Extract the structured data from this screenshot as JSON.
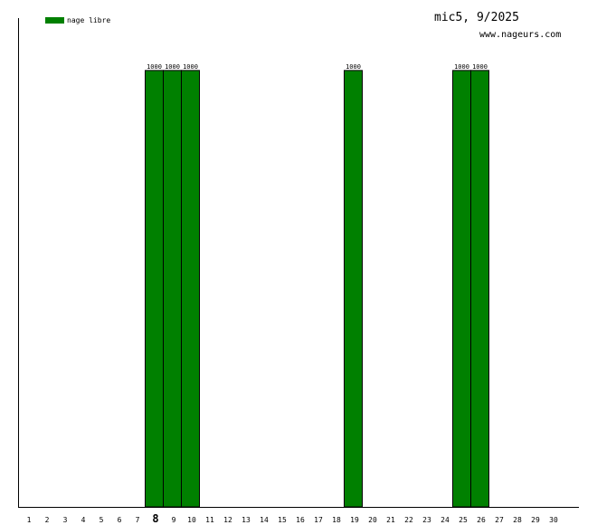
{
  "chart_data": {
    "type": "bar",
    "title": "mic5, 9/2025",
    "subtitle": "www.nageurs.com",
    "categories": [
      "1",
      "2",
      "3",
      "4",
      "5",
      "6",
      "7",
      "8",
      "9",
      "10",
      "11",
      "12",
      "13",
      "14",
      "15",
      "16",
      "17",
      "18",
      "19",
      "20",
      "21",
      "22",
      "23",
      "24",
      "25",
      "26",
      "27",
      "28",
      "29",
      "30"
    ],
    "highlight_category": "8",
    "series": [
      {
        "name": "nage libre",
        "color": "#008000",
        "values": [
          0,
          0,
          0,
          0,
          0,
          0,
          0,
          1000,
          1000,
          1000,
          0,
          0,
          0,
          0,
          0,
          0,
          0,
          0,
          1000,
          0,
          0,
          0,
          0,
          0,
          1000,
          1000,
          0,
          0,
          0,
          0
        ]
      }
    ],
    "ylim": [
      0,
      1120
    ],
    "grid": false,
    "legend": "top-left",
    "xlabel": "",
    "ylabel": ""
  }
}
